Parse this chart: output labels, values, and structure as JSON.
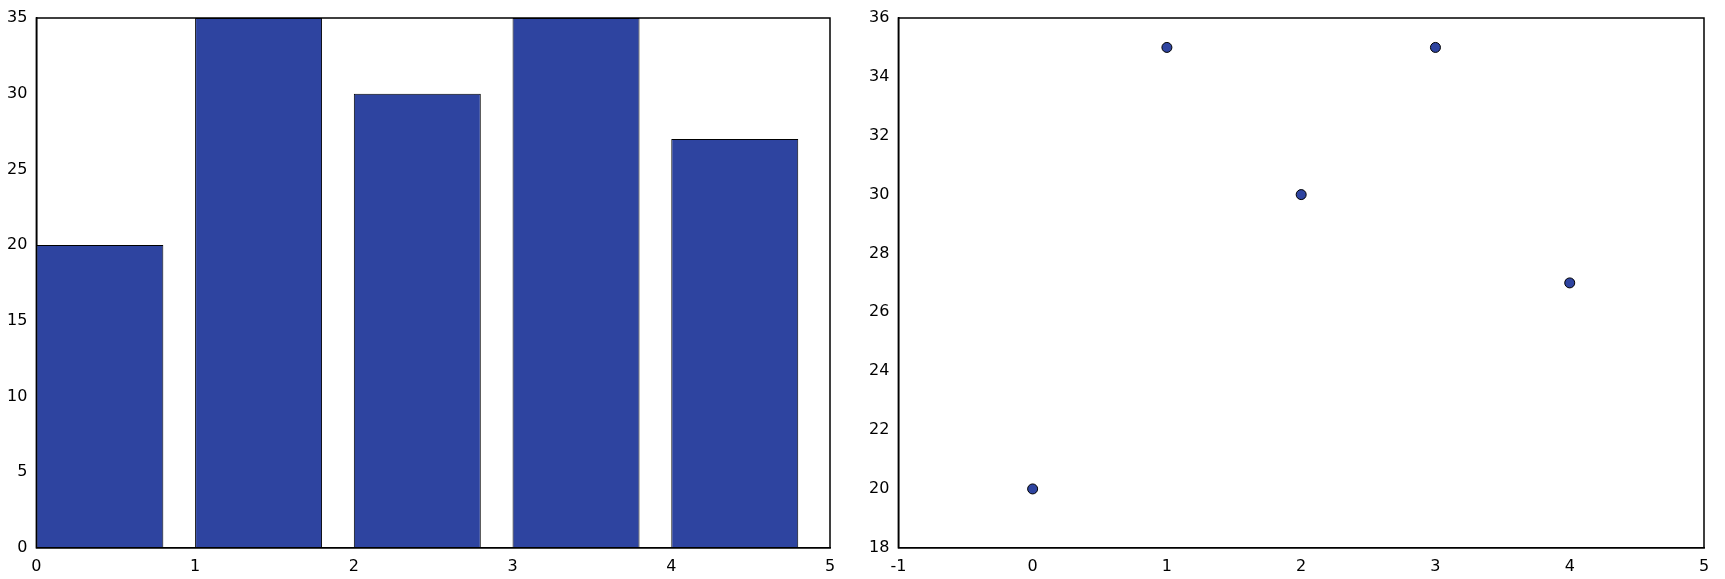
{
  "chart_data": [
    {
      "type": "bar",
      "x": [
        0.4,
        1.4,
        2.4,
        3.4,
        4.4
      ],
      "values": [
        20,
        35,
        30,
        35,
        27
      ],
      "color": "#2e44a0",
      "xlim": [
        0,
        5
      ],
      "xticks": [
        0,
        1,
        2,
        3,
        4,
        5
      ],
      "ylim": [
        0,
        35
      ],
      "yticks": [
        0,
        5,
        10,
        15,
        20,
        25,
        30,
        35
      ],
      "grid": false,
      "legend": false
    },
    {
      "type": "scatter",
      "x": [
        0,
        1,
        2,
        3,
        4
      ],
      "values": [
        20,
        35,
        30,
        35,
        27
      ],
      "color": "#2e44a0",
      "marker": "circle",
      "xlim": [
        -1,
        5
      ],
      "xticks": [
        -1,
        0,
        1,
        2,
        3,
        4,
        5
      ],
      "ylim": [
        18,
        36
      ],
      "yticks": [
        18,
        20,
        22,
        24,
        26,
        28,
        30,
        32,
        34,
        36
      ],
      "grid": false,
      "legend": false
    }
  ]
}
